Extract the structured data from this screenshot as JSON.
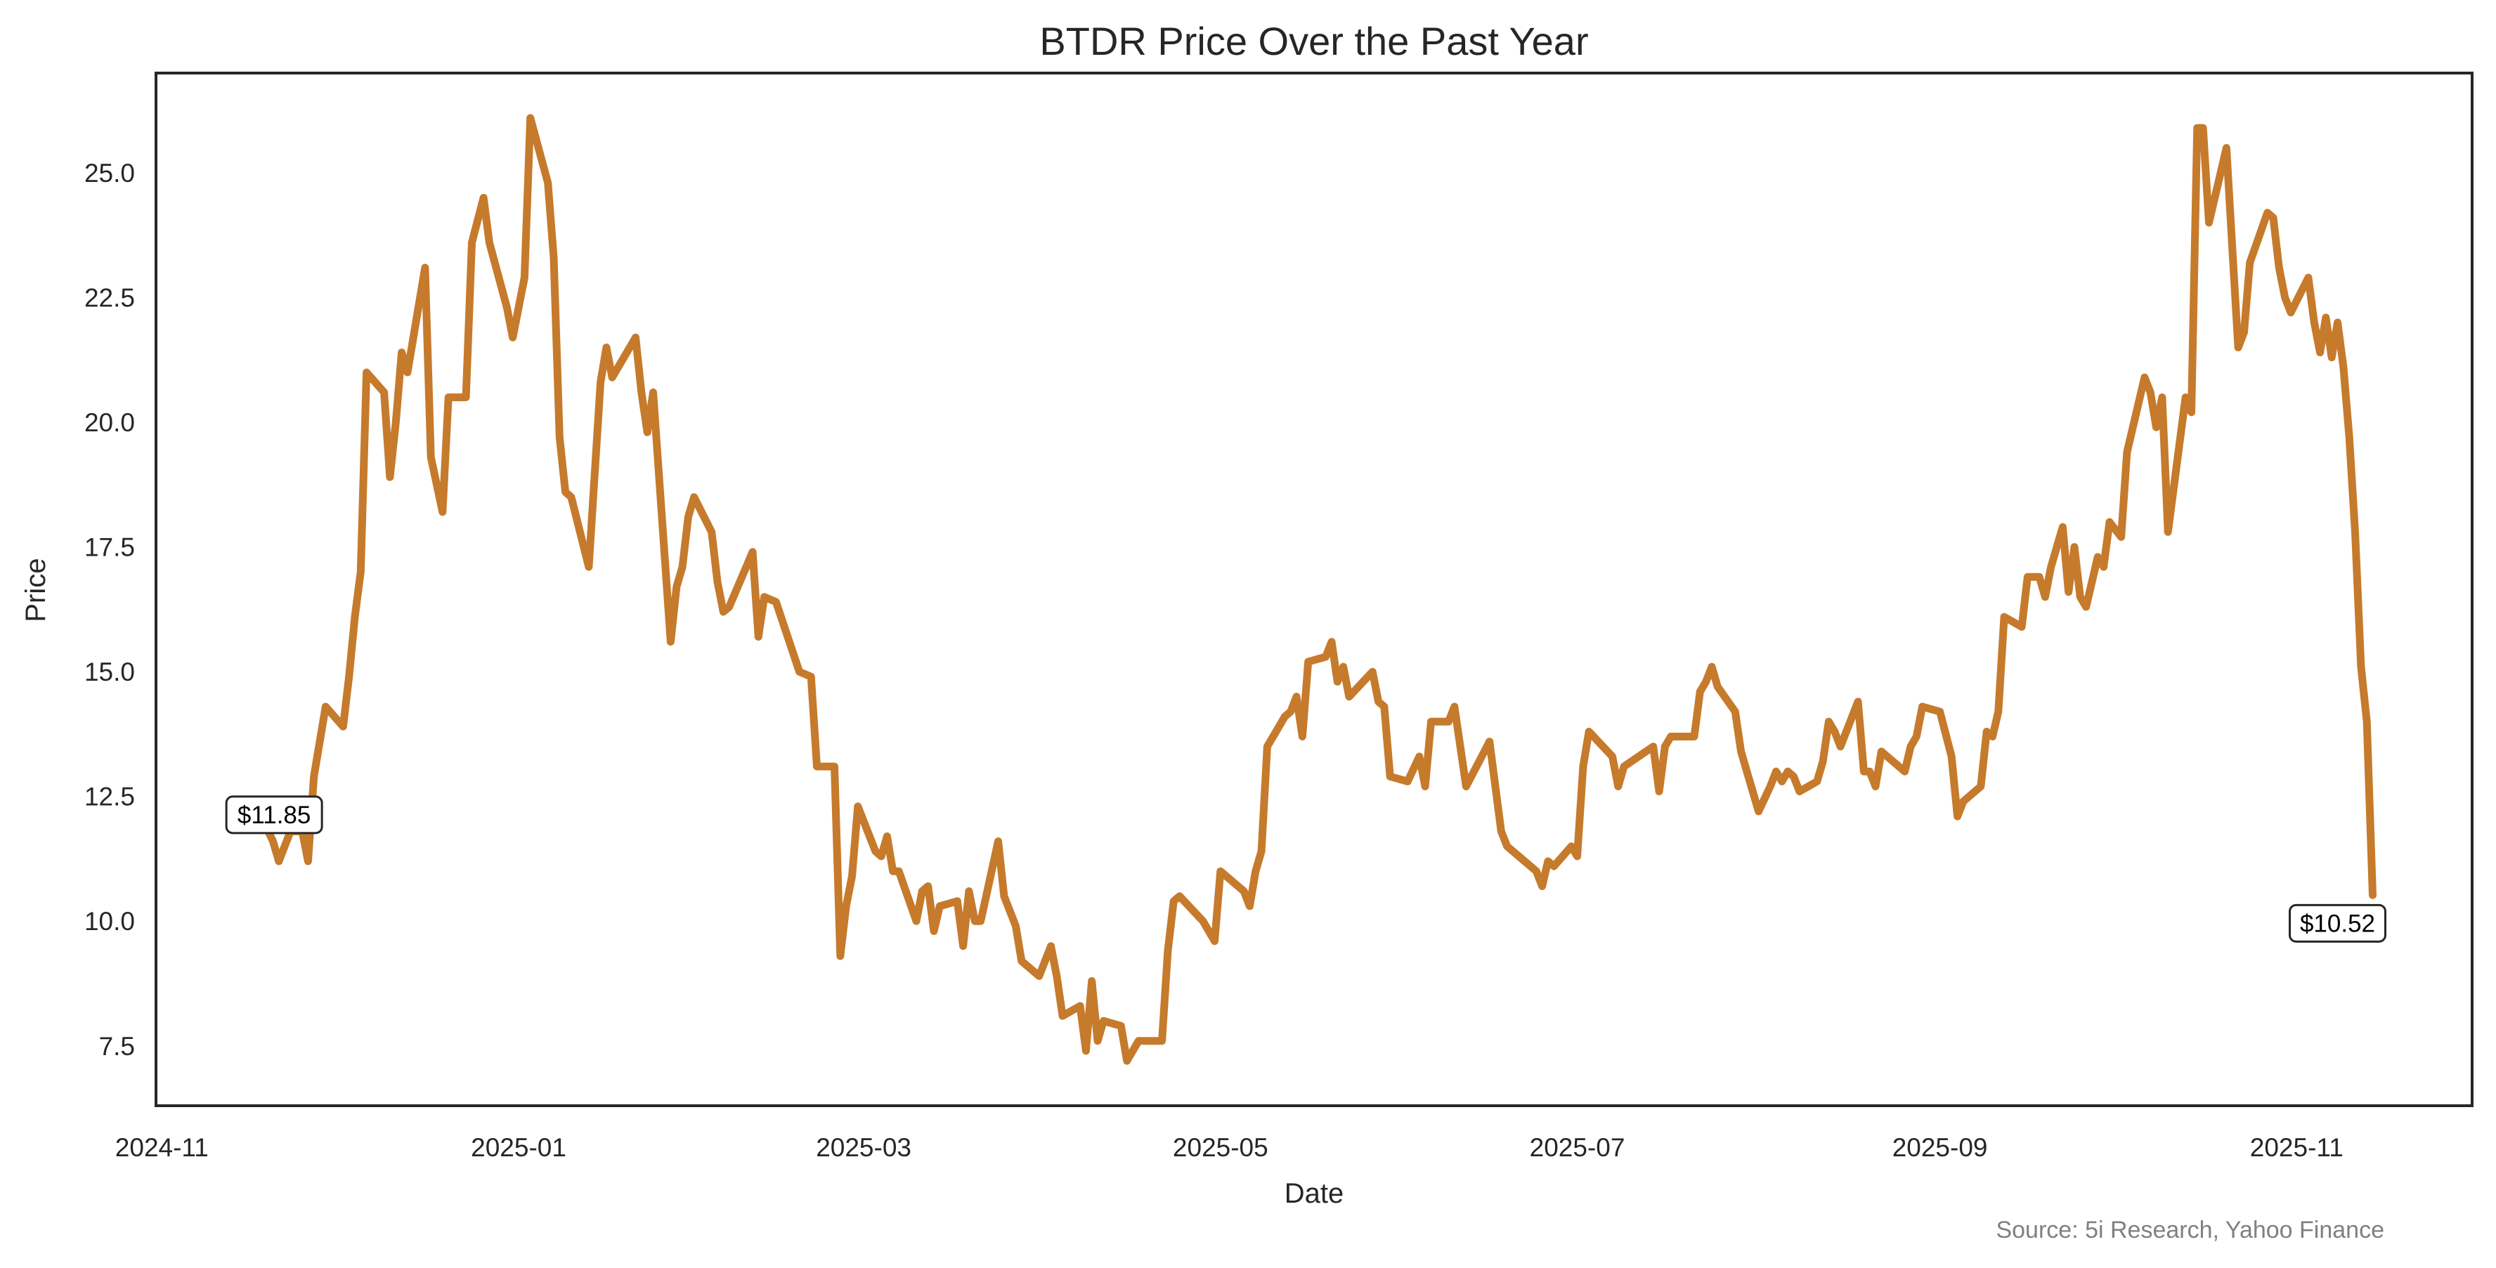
{
  "chart_data": {
    "type": "line",
    "title": "BTDR Price Over the Past Year",
    "xlabel": "Date",
    "ylabel": "Price",
    "source": "Source: 5i Research, Yahoo Finance",
    "xlim": [
      "2024-10-31",
      "2025-12-01"
    ],
    "ylim": [
      6.3,
      27.0
    ],
    "x_ticks": [
      {
        "date": "2024-11-01",
        "label": "2024-11"
      },
      {
        "date": "2025-01-01",
        "label": "2025-01"
      },
      {
        "date": "2025-03-01",
        "label": "2025-03"
      },
      {
        "date": "2025-05-01",
        "label": "2025-05"
      },
      {
        "date": "2025-07-01",
        "label": "2025-07"
      },
      {
        "date": "2025-09-01",
        "label": "2025-09"
      },
      {
        "date": "2025-11-01",
        "label": "2025-11"
      }
    ],
    "y_ticks": [
      {
        "value": 7.5,
        "label": "7.5"
      },
      {
        "value": 10.0,
        "label": "10.0"
      },
      {
        "value": 12.5,
        "label": "12.5"
      },
      {
        "value": 15.0,
        "label": "15.0"
      },
      {
        "value": 17.5,
        "label": "17.5"
      },
      {
        "value": 20.0,
        "label": "20.0"
      },
      {
        "value": 22.5,
        "label": "22.5"
      },
      {
        "value": 25.0,
        "label": "25.0"
      }
    ],
    "grid": false,
    "line_color": "#C67A2C",
    "annotations": [
      {
        "date": "2024-11-19",
        "value": 11.85,
        "label": "$11.85",
        "position": "above-start"
      },
      {
        "date": "2025-11-14",
        "value": 10.52,
        "label": "$10.52",
        "position": "below-end"
      }
    ],
    "points": [
      [
        "2024-11-19",
        11.85
      ],
      [
        "2024-11-20",
        11.6
      ],
      [
        "2024-11-21",
        11.2
      ],
      [
        "2024-11-23",
        11.8
      ],
      [
        "2024-11-25",
        11.8
      ],
      [
        "2024-11-26",
        11.2
      ],
      [
        "2024-11-27",
        12.9
      ],
      [
        "2024-11-29",
        14.3
      ],
      [
        "2024-12-02",
        13.9
      ],
      [
        "2024-12-03",
        14.9
      ],
      [
        "2024-12-04",
        16.1
      ],
      [
        "2024-12-05",
        17.0
      ],
      [
        "2024-12-06",
        21.0
      ],
      [
        "2024-12-09",
        20.6
      ],
      [
        "2024-12-10",
        18.9
      ],
      [
        "2024-12-11",
        20.0
      ],
      [
        "2024-12-12",
        21.4
      ],
      [
        "2024-12-13",
        21.0
      ],
      [
        "2024-12-16",
        23.1
      ],
      [
        "2024-12-17",
        19.3
      ],
      [
        "2024-12-19",
        18.2
      ],
      [
        "2024-12-20",
        20.5
      ],
      [
        "2024-12-23",
        20.5
      ],
      [
        "2024-12-24",
        23.6
      ],
      [
        "2024-12-26",
        24.5
      ],
      [
        "2024-12-27",
        23.6
      ],
      [
        "2024-12-30",
        22.3
      ],
      [
        "2024-12-31",
        21.7
      ],
      [
        "2025-01-02",
        22.9
      ],
      [
        "2025-01-03",
        26.1
      ],
      [
        "2025-01-06",
        24.8
      ],
      [
        "2025-01-07",
        23.3
      ],
      [
        "2025-01-08",
        19.7
      ],
      [
        "2025-01-09",
        18.6
      ],
      [
        "2025-01-10",
        18.5
      ],
      [
        "2025-01-13",
        17.1
      ],
      [
        "2025-01-15",
        20.8
      ],
      [
        "2025-01-16",
        21.5
      ],
      [
        "2025-01-17",
        20.9
      ],
      [
        "2025-01-21",
        21.7
      ],
      [
        "2025-01-22",
        20.6
      ],
      [
        "2025-01-23",
        19.8
      ],
      [
        "2025-01-24",
        20.6
      ],
      [
        "2025-01-27",
        15.6
      ],
      [
        "2025-01-28",
        16.7
      ],
      [
        "2025-01-29",
        17.1
      ],
      [
        "2025-01-30",
        18.1
      ],
      [
        "2025-01-31",
        18.5
      ],
      [
        "2025-02-03",
        17.8
      ],
      [
        "2025-02-04",
        16.8
      ],
      [
        "2025-02-05",
        16.2
      ],
      [
        "2025-02-06",
        16.3
      ],
      [
        "2025-02-10",
        17.4
      ],
      [
        "2025-02-11",
        15.7
      ],
      [
        "2025-02-12",
        16.5
      ],
      [
        "2025-02-14",
        16.4
      ],
      [
        "2025-02-18",
        15.0
      ],
      [
        "2025-02-20",
        14.9
      ],
      [
        "2025-02-21",
        13.1
      ],
      [
        "2025-02-24",
        13.1
      ],
      [
        "2025-02-25",
        9.3
      ],
      [
        "2025-02-26",
        10.3
      ],
      [
        "2025-02-27",
        10.9
      ],
      [
        "2025-02-28",
        12.3
      ],
      [
        "2025-03-03",
        11.4
      ],
      [
        "2025-03-04",
        11.3
      ],
      [
        "2025-03-05",
        11.7
      ],
      [
        "2025-03-06",
        11.0
      ],
      [
        "2025-03-07",
        11.0
      ],
      [
        "2025-03-10",
        10.0
      ],
      [
        "2025-03-11",
        10.6
      ],
      [
        "2025-03-12",
        10.7
      ],
      [
        "2025-03-13",
        9.8
      ],
      [
        "2025-03-14",
        10.3
      ],
      [
        "2025-03-17",
        10.4
      ],
      [
        "2025-03-18",
        9.5
      ],
      [
        "2025-03-19",
        10.6
      ],
      [
        "2025-03-20",
        10.0
      ],
      [
        "2025-03-21",
        10.0
      ],
      [
        "2025-03-24",
        11.6
      ],
      [
        "2025-03-25",
        10.5
      ],
      [
        "2025-03-26",
        10.2
      ],
      [
        "2025-03-27",
        9.9
      ],
      [
        "2025-03-28",
        9.2
      ],
      [
        "2025-03-31",
        8.9
      ],
      [
        "2025-04-02",
        9.5
      ],
      [
        "2025-04-03",
        8.9
      ],
      [
        "2025-04-04",
        8.1
      ],
      [
        "2025-04-07",
        8.3
      ],
      [
        "2025-04-08",
        7.4
      ],
      [
        "2025-04-09",
        8.8
      ],
      [
        "2025-04-10",
        7.6
      ],
      [
        "2025-04-11",
        8.0
      ],
      [
        "2025-04-14",
        7.9
      ],
      [
        "2025-04-15",
        7.2
      ],
      [
        "2025-04-17",
        7.6
      ],
      [
        "2025-04-21",
        7.6
      ],
      [
        "2025-04-22",
        9.4
      ],
      [
        "2025-04-23",
        10.4
      ],
      [
        "2025-04-24",
        10.5
      ],
      [
        "2025-04-28",
        10.0
      ],
      [
        "2025-04-30",
        9.6
      ],
      [
        "2025-05-01",
        11.0
      ],
      [
        "2025-05-05",
        10.6
      ],
      [
        "2025-05-06",
        10.3
      ],
      [
        "2025-05-07",
        11.0
      ],
      [
        "2025-05-08",
        11.4
      ],
      [
        "2025-05-09",
        13.5
      ],
      [
        "2025-05-12",
        14.1
      ],
      [
        "2025-05-13",
        14.2
      ],
      [
        "2025-05-14",
        14.5
      ],
      [
        "2025-05-15",
        13.7
      ],
      [
        "2025-05-16",
        15.2
      ],
      [
        "2025-05-19",
        15.3
      ],
      [
        "2025-05-20",
        15.6
      ],
      [
        "2025-05-21",
        14.8
      ],
      [
        "2025-05-22",
        15.1
      ],
      [
        "2025-05-23",
        14.5
      ],
      [
        "2025-05-27",
        15.0
      ],
      [
        "2025-05-28",
        14.4
      ],
      [
        "2025-05-29",
        14.3
      ],
      [
        "2025-05-30",
        12.9
      ],
      [
        "2025-06-02",
        12.8
      ],
      [
        "2025-06-04",
        13.3
      ],
      [
        "2025-06-05",
        12.7
      ],
      [
        "2025-06-06",
        14.0
      ],
      [
        "2025-06-09",
        14.0
      ],
      [
        "2025-06-10",
        14.3
      ],
      [
        "2025-06-11",
        13.5
      ],
      [
        "2025-06-12",
        12.7
      ],
      [
        "2025-06-16",
        13.6
      ],
      [
        "2025-06-17",
        12.7
      ],
      [
        "2025-06-18",
        11.8
      ],
      [
        "2025-06-19",
        11.5
      ],
      [
        "2025-06-23",
        11.1
      ],
      [
        "2025-06-24",
        11.0
      ],
      [
        "2025-06-25",
        10.7
      ],
      [
        "2025-06-26",
        11.2
      ],
      [
        "2025-06-27",
        11.1
      ],
      [
        "2025-06-30",
        11.5
      ],
      [
        "2025-07-01",
        11.3
      ],
      [
        "2025-07-02",
        13.1
      ],
      [
        "2025-07-03",
        13.8
      ],
      [
        "2025-07-07",
        13.3
      ],
      [
        "2025-07-08",
        12.7
      ],
      [
        "2025-07-09",
        13.1
      ],
      [
        "2025-07-14",
        13.5
      ],
      [
        "2025-07-15",
        12.6
      ],
      [
        "2025-07-16",
        13.5
      ],
      [
        "2025-07-17",
        13.7
      ],
      [
        "2025-07-21",
        13.7
      ],
      [
        "2025-07-22",
        14.6
      ],
      [
        "2025-07-23",
        14.8
      ],
      [
        "2025-07-24",
        15.1
      ],
      [
        "2025-07-25",
        14.7
      ],
      [
        "2025-07-28",
        14.2
      ],
      [
        "2025-07-29",
        13.4
      ],
      [
        "2025-07-30",
        13.0
      ],
      [
        "2025-08-01",
        12.2
      ],
      [
        "2025-08-03",
        12.7
      ],
      [
        "2025-08-04",
        13.0
      ],
      [
        "2025-08-05",
        12.8
      ],
      [
        "2025-08-06",
        13.0
      ],
      [
        "2025-08-07",
        12.9
      ],
      [
        "2025-08-08",
        12.6
      ],
      [
        "2025-08-11",
        12.8
      ],
      [
        "2025-08-12",
        13.2
      ],
      [
        "2025-08-13",
        14.0
      ],
      [
        "2025-08-14",
        13.8
      ],
      [
        "2025-08-15",
        13.5
      ],
      [
        "2025-08-18",
        14.4
      ],
      [
        "2025-08-19",
        13.0
      ],
      [
        "2025-08-20",
        13.0
      ],
      [
        "2025-08-21",
        12.7
      ],
      [
        "2025-08-22",
        13.4
      ],
      [
        "2025-08-26",
        13.0
      ],
      [
        "2025-08-27",
        13.5
      ],
      [
        "2025-08-28",
        13.7
      ],
      [
        "2025-08-29",
        14.3
      ],
      [
        "2025-09-01",
        14.2
      ],
      [
        "2025-09-03",
        13.3
      ],
      [
        "2025-09-04",
        12.1
      ],
      [
        "2025-09-05",
        12.4
      ],
      [
        "2025-09-08",
        12.7
      ],
      [
        "2025-09-09",
        13.8
      ],
      [
        "2025-09-10",
        13.7
      ],
      [
        "2025-09-11",
        14.2
      ],
      [
        "2025-09-12",
        16.1
      ],
      [
        "2025-09-15",
        15.9
      ],
      [
        "2025-09-16",
        16.9
      ],
      [
        "2025-09-18",
        16.9
      ],
      [
        "2025-09-19",
        16.5
      ],
      [
        "2025-09-20",
        17.1
      ],
      [
        "2025-09-22",
        17.9
      ],
      [
        "2025-09-23",
        16.6
      ],
      [
        "2025-09-24",
        17.5
      ],
      [
        "2025-09-25",
        16.5
      ],
      [
        "2025-09-26",
        16.3
      ],
      [
        "2025-09-27",
        16.8
      ],
      [
        "2025-09-28",
        17.3
      ],
      [
        "2025-09-29",
        17.1
      ],
      [
        "2025-09-30",
        18.0
      ],
      [
        "2025-10-02",
        17.7
      ],
      [
        "2025-10-03",
        19.4
      ],
      [
        "2025-10-06",
        20.9
      ],
      [
        "2025-10-07",
        20.6
      ],
      [
        "2025-10-08",
        19.9
      ],
      [
        "2025-10-09",
        20.5
      ],
      [
        "2025-10-10",
        17.8
      ],
      [
        "2025-10-13",
        20.5
      ],
      [
        "2025-10-14",
        20.2
      ],
      [
        "2025-10-15",
        25.9
      ],
      [
        "2025-10-16",
        25.9
      ],
      [
        "2025-10-17",
        24.0
      ],
      [
        "2025-10-20",
        25.5
      ],
      [
        "2025-10-21",
        23.5
      ],
      [
        "2025-10-22",
        21.5
      ],
      [
        "2025-10-23",
        21.8
      ],
      [
        "2025-10-24",
        23.2
      ],
      [
        "2025-10-27",
        24.2
      ],
      [
        "2025-10-28",
        24.1
      ],
      [
        "2025-10-29",
        23.1
      ],
      [
        "2025-10-30",
        22.5
      ],
      [
        "2025-10-31",
        22.2
      ],
      [
        "2025-11-03",
        22.9
      ],
      [
        "2025-11-04",
        22.0
      ],
      [
        "2025-11-05",
        21.4
      ],
      [
        "2025-11-06",
        22.1
      ],
      [
        "2025-11-07",
        21.3
      ],
      [
        "2025-11-08",
        22.0
      ],
      [
        "2025-11-09",
        21.1
      ],
      [
        "2025-11-10",
        19.7
      ],
      [
        "2025-11-11",
        17.8
      ],
      [
        "2025-11-12",
        15.1
      ],
      [
        "2025-11-13",
        14.0
      ],
      [
        "2025-11-14",
        10.52
      ]
    ]
  }
}
